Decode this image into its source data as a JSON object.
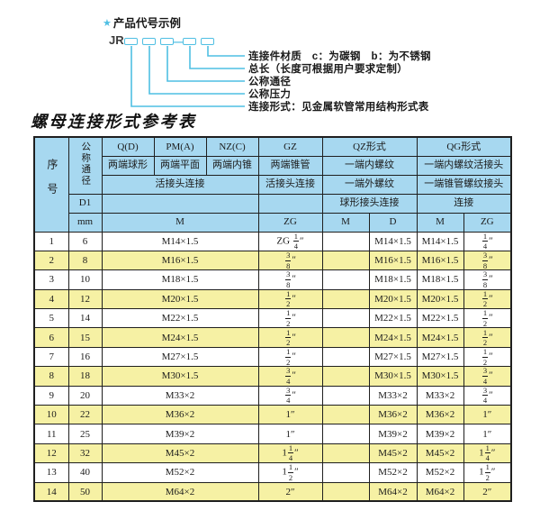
{
  "diagram": {
    "star": "★",
    "heading": "产品代号示例",
    "prefix": "JR",
    "dash": "—",
    "labels": [
      "连接件材质　c：为碳钢　b：为不锈钢",
      "总长（长度可根据用户要求定制）",
      "公称通径",
      "公称压力",
      "连接形式：见金属软管常用结构形式表"
    ]
  },
  "table_title": "螺母连接形式参考表",
  "table": {
    "header": {
      "seq": "序号",
      "nominal_diameter": "公称通径",
      "d1": "D1",
      "mm": "mm",
      "col_q": "Q(D)",
      "col_q_sub": "两端球形",
      "col_pm": "PM(A)",
      "col_pm_sub": "两端平面",
      "col_nz": "NZ(C)",
      "col_nz_sub": "两端内锥",
      "col_gz": "GZ",
      "col_gz_sub": "两端锥管",
      "union_conn_left": "活接头连接",
      "union_conn_gz": "活接头连接",
      "col_qz": "QZ形式",
      "col_qz_sub1": "一端内螺纹",
      "col_qz_sub2": "一端外螺纹",
      "col_qz_sub3": "球形接头连接",
      "col_qg": "QG形式",
      "col_qg_sub1": "一端内螺纹活接头",
      "col_qg_sub2": "一端锥管螺纹接头",
      "col_qg_sub3": "连接",
      "m_label": "M",
      "zg_label": "ZG",
      "qz_m": "M",
      "qz_d": "D",
      "qg_m": "M",
      "qg_zg": "ZG"
    },
    "rows": [
      {
        "seq": "1",
        "mm": "6",
        "m": "M14×1.5",
        "gz": "ZG {1/4}″",
        "qz_m": "",
        "qz_d": "M14×1.5",
        "qg_m": "M14×1.5",
        "qg_zg": "{1/4}″"
      },
      {
        "seq": "2",
        "mm": "8",
        "m": "M16×1.5",
        "gz": "{3/8}″",
        "qz_m": "",
        "qz_d": "M16×1.5",
        "qg_m": "M16×1.5",
        "qg_zg": "{3/8}″"
      },
      {
        "seq": "3",
        "mm": "10",
        "m": "M18×1.5",
        "gz": "{3/8}″",
        "qz_m": "",
        "qz_d": "M18×1.5",
        "qg_m": "M18×1.5",
        "qg_zg": "{3/8}″"
      },
      {
        "seq": "4",
        "mm": "12",
        "m": "M20×1.5",
        "gz": "{1/2}″",
        "qz_m": "",
        "qz_d": "M20×1.5",
        "qg_m": "M20×1.5",
        "qg_zg": "{1/2}″"
      },
      {
        "seq": "5",
        "mm": "14",
        "m": "M22×1.5",
        "gz": "{1/2}″",
        "qz_m": "",
        "qz_d": "M22×1.5",
        "qg_m": "M22×1.5",
        "qg_zg": "{1/2}″"
      },
      {
        "seq": "6",
        "mm": "15",
        "m": "M24×1.5",
        "gz": "{1/2}″",
        "qz_m": "",
        "qz_d": "M24×1.5",
        "qg_m": "M24×1.5",
        "qg_zg": "{1/2}″"
      },
      {
        "seq": "7",
        "mm": "16",
        "m": "M27×1.5",
        "gz": "{1/2}″",
        "qz_m": "",
        "qz_d": "M27×1.5",
        "qg_m": "M27×1.5",
        "qg_zg": "{1/2}″"
      },
      {
        "seq": "8",
        "mm": "18",
        "m": "M30×1.5",
        "gz": "{3/4}″",
        "qz_m": "",
        "qz_d": "M30×1.5",
        "qg_m": "M30×1.5",
        "qg_zg": "{3/4}″"
      },
      {
        "seq": "9",
        "mm": "20",
        "m": "M33×2",
        "gz": "{3/4}″",
        "qz_m": "",
        "qz_d": "M33×2",
        "qg_m": "M33×2",
        "qg_zg": "{3/4}″"
      },
      {
        "seq": "10",
        "mm": "22",
        "m": "M36×2",
        "gz": "1″",
        "qz_m": "",
        "qz_d": "M36×2",
        "qg_m": "M36×2",
        "qg_zg": "1″"
      },
      {
        "seq": "11",
        "mm": "25",
        "m": "M39×2",
        "gz": "1″",
        "qz_m": "",
        "qz_d": "M39×2",
        "qg_m": "M39×2",
        "qg_zg": "1″"
      },
      {
        "seq": "12",
        "mm": "32",
        "m": "M45×2",
        "gz": "1{1/4}″",
        "qz_m": "",
        "qz_d": "M45×2",
        "qg_m": "M45×2",
        "qg_zg": "1{1/4}″"
      },
      {
        "seq": "13",
        "mm": "40",
        "m": "M52×2",
        "gz": "1{1/2}″",
        "qz_m": "",
        "qz_d": "M52×2",
        "qg_m": "M52×2",
        "qg_zg": "1{1/2}″"
      },
      {
        "seq": "14",
        "mm": "50",
        "m": "M64×2",
        "gz": "2″",
        "qz_m": "",
        "qz_d": "M64×2",
        "qg_m": "M64×2",
        "qg_zg": "2″"
      }
    ]
  },
  "colors": {
    "header_blue": "#a7d8f0",
    "row_yellow": "#f6f1a4",
    "row_white": "#ffffff",
    "line_cyan": "#4fbfe3",
    "border_dark": "#1f1f1f",
    "text_dark": "#1b1b1b"
  }
}
